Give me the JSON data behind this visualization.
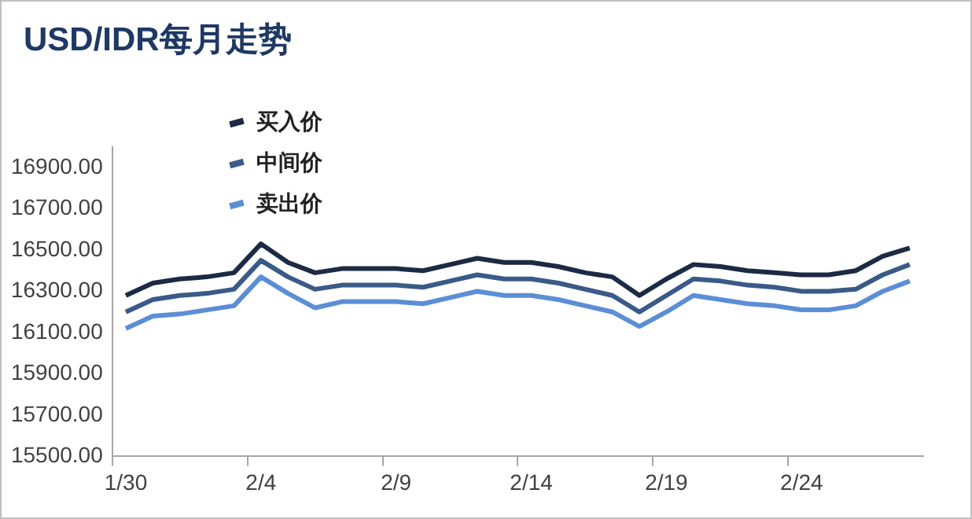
{
  "chart_data": {
    "type": "line",
    "title": "USD/IDR每月走势",
    "categories": [
      "1/30",
      null,
      null,
      null,
      null,
      "2/4",
      null,
      null,
      null,
      null,
      "2/9",
      null,
      null,
      null,
      null,
      "2/14",
      null,
      null,
      null,
      null,
      "2/19",
      null,
      null,
      null,
      null,
      "2/24",
      null,
      null,
      null,
      null
    ],
    "series": [
      {
        "name": "买入价",
        "color": "#1c2a44",
        "values": [
          16280,
          16340,
          16360,
          16370,
          16390,
          16530,
          16440,
          16390,
          16410,
          16410,
          16410,
          16400,
          16430,
          16460,
          16440,
          16440,
          16420,
          16390,
          16370,
          16280,
          16360,
          16430,
          16420,
          16400,
          16390,
          16380,
          16380,
          16400,
          16470,
          16510
        ]
      },
      {
        "name": "中间价",
        "color": "#3a5a88",
        "values": [
          16200,
          16260,
          16280,
          16290,
          16310,
          16450,
          16370,
          16310,
          16330,
          16330,
          16330,
          16320,
          16350,
          16380,
          16360,
          16360,
          16340,
          16310,
          16280,
          16200,
          16280,
          16360,
          16350,
          16330,
          16320,
          16300,
          16300,
          16310,
          16380,
          16430
        ]
      },
      {
        "name": "卖出价",
        "color": "#5b8ed6",
        "values": [
          16120,
          16180,
          16190,
          16210,
          16230,
          16370,
          16290,
          16220,
          16250,
          16250,
          16250,
          16240,
          16270,
          16300,
          16280,
          16280,
          16260,
          16230,
          16200,
          16130,
          16200,
          16280,
          16260,
          16240,
          16230,
          16210,
          16210,
          16230,
          16300,
          16350
        ]
      }
    ],
    "ylim": [
      15500,
      17000
    ],
    "yticks": [
      {
        "value": 15500,
        "label": "15500.00"
      },
      {
        "value": 15700,
        "label": "15700.00"
      },
      {
        "value": 15900,
        "label": "15900.00"
      },
      {
        "value": 16100,
        "label": "16100.00"
      },
      {
        "value": 16300,
        "label": "16300.00"
      },
      {
        "value": 16500,
        "label": "16500.00"
      },
      {
        "value": 16700,
        "label": "16700.00"
      },
      {
        "value": 16900,
        "label": "16900.00"
      }
    ],
    "grid": false,
    "legend": "top left",
    "marker": "none",
    "line_style": "solid"
  }
}
